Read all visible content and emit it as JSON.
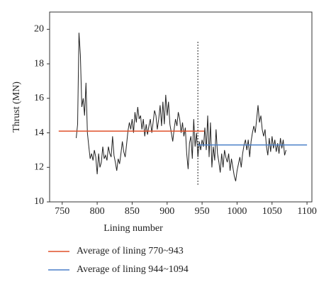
{
  "chart_data": {
    "type": "line",
    "xlabel": "Lining number",
    "ylabel": "Thrust (MN)",
    "xlim": [
      732,
      1107
    ],
    "ylim": [
      10,
      21
    ],
    "xticks": [
      750,
      800,
      850,
      900,
      950,
      1000,
      1050,
      1100
    ],
    "yticks": [
      10,
      12,
      14,
      16,
      18,
      20
    ],
    "series": [
      {
        "color": "#222222",
        "x": [
          770,
          772,
          774,
          776,
          778,
          780,
          782,
          784,
          786,
          788,
          790,
          792,
          794,
          796,
          798,
          800,
          802,
          804,
          806,
          808,
          810,
          812,
          814,
          816,
          818,
          820,
          822,
          824,
          826,
          828,
          830,
          832,
          834,
          836,
          838,
          840,
          842,
          844,
          846,
          848,
          850,
          852,
          854,
          856,
          858,
          860,
          862,
          864,
          866,
          868,
          870,
          872,
          874,
          876,
          878,
          880,
          882,
          884,
          886,
          888,
          890,
          892,
          894,
          896,
          898,
          900,
          902,
          904,
          906,
          908,
          910,
          912,
          914,
          916,
          918,
          920,
          922,
          924,
          926,
          928,
          930,
          932,
          934,
          936,
          938,
          940,
          942,
          944,
          946,
          948,
          950,
          952,
          954,
          956,
          958,
          960,
          962,
          964,
          966,
          968,
          970,
          972,
          974,
          976,
          978,
          980,
          982,
          984,
          986,
          988,
          990,
          992,
          994,
          996,
          998,
          1000,
          1002,
          1004,
          1006,
          1008,
          1010,
          1012,
          1014,
          1016,
          1018,
          1020,
          1022,
          1024,
          1026,
          1028,
          1030,
          1032,
          1034,
          1036,
          1038,
          1040,
          1042,
          1044,
          1046,
          1048,
          1050,
          1052,
          1054,
          1056,
          1058,
          1060,
          1062,
          1064,
          1066,
          1068,
          1070
        ],
        "values": [
          13.7,
          14.5,
          19.8,
          18.5,
          15.5,
          16.0,
          15.0,
          16.9,
          14.0,
          13.2,
          12.5,
          12.8,
          12.4,
          13.0,
          12.6,
          11.6,
          12.8,
          12.0,
          12.3,
          13.2,
          12.5,
          12.7,
          12.4,
          13.2,
          12.8,
          12.6,
          13.8,
          12.7,
          12.3,
          11.8,
          12.5,
          12.2,
          12.8,
          13.5,
          12.9,
          12.6,
          13.3,
          14.1,
          14.6,
          14.2,
          14.8,
          14.0,
          15.2,
          14.6,
          15.5,
          14.8,
          15.0,
          14.2,
          14.8,
          13.8,
          14.5,
          13.9,
          14.4,
          14.8,
          14.0,
          14.6,
          15.3,
          15.0,
          14.2,
          14.8,
          15.6,
          14.4,
          15.8,
          14.5,
          16.2,
          15.0,
          15.8,
          14.5,
          14.0,
          13.5,
          14.2,
          14.8,
          14.4,
          15.2,
          14.8,
          14.0,
          14.6,
          13.8,
          14.3,
          12.8,
          11.9,
          13.4,
          13.8,
          12.5,
          14.8,
          13.2,
          14.0,
          12.6,
          13.5,
          13.0,
          13.6,
          13.2,
          14.3,
          13.0,
          15.0,
          12.6,
          14.6,
          12.0,
          13.2,
          12.4,
          14.2,
          12.8,
          12.3,
          11.7,
          12.8,
          12.0,
          13.0,
          12.6,
          12.3,
          12.8,
          11.8,
          12.5,
          12.0,
          11.5,
          11.2,
          11.8,
          12.2,
          12.6,
          12.0,
          12.8,
          13.3,
          13.6,
          13.0,
          13.6,
          12.6,
          13.5,
          14.0,
          14.4,
          14.0,
          14.8,
          15.6,
          14.6,
          15.0,
          14.2,
          13.8,
          14.2,
          13.2,
          12.7,
          13.7,
          12.9,
          13.8,
          13.1,
          13.6,
          12.9,
          13.4,
          12.8,
          13.7,
          13.1,
          13.6,
          12.7,
          13.0
        ]
      },
      {
        "name": "Average of lining 770~943",
        "color": "#e0502a",
        "x": [
          745,
          953
        ],
        "values": [
          14.1,
          14.1
        ]
      },
      {
        "name": "Average of lining 944~1094",
        "color": "#4a7fc8",
        "x": [
          944,
          1100
        ],
        "values": [
          13.3,
          13.3
        ]
      }
    ],
    "vlines": [
      {
        "x": 944,
        "y": [
          11,
          19.3
        ]
      }
    ]
  }
}
